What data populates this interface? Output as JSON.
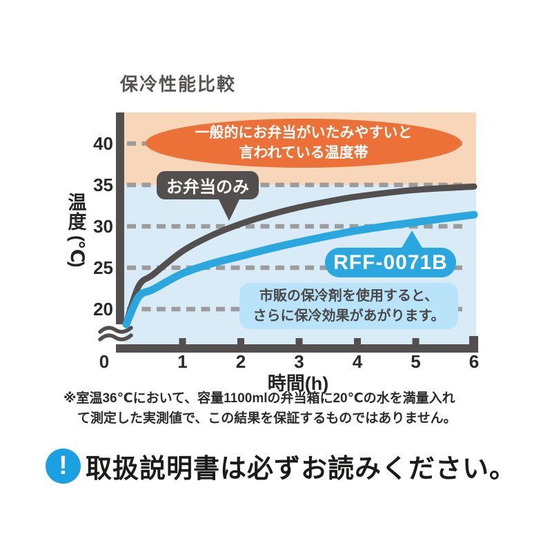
{
  "colors": {
    "dark": "#534f4f",
    "blue": "#2ba7e0",
    "zone_warm": "#f8d6ba",
    "zone_cool": "#d9ebf7",
    "ellipse_orange": "#eb7138",
    "note_box_blue": "#b9e3f8",
    "gridline_gray": "#9c9c9c",
    "icon_blue": "#1ba1e2",
    "tick_text": "#2b2828"
  },
  "chart_data": {
    "type": "line",
    "title": "保冷性能比較",
    "xlabel": "時間(h)",
    "ylabel": "温度(℃)",
    "ylabel_vertical": [
      "温",
      "度",
      "(℃)"
    ],
    "xticks": [
      0,
      1,
      2,
      3,
      4,
      5,
      6
    ],
    "yticks": [
      40,
      35,
      30,
      25,
      20
    ],
    "xlim": [
      0,
      6
    ],
    "ylim_visible": [
      20,
      43.5
    ],
    "axis_break_below": 20,
    "grid": "horizontal dashed",
    "series": [
      {
        "name": "お弁当のみ",
        "color": "#534f4f",
        "points": [
          [
            0,
            20
          ],
          [
            0.25,
            22.8
          ],
          [
            0.5,
            24.2
          ],
          [
            1,
            27
          ],
          [
            1.5,
            28.9
          ],
          [
            2,
            30.3
          ],
          [
            2.5,
            31.4
          ],
          [
            3,
            32.3
          ],
          [
            3.5,
            33
          ],
          [
            4,
            33.6
          ],
          [
            5,
            34.4
          ],
          [
            6,
            34.8
          ]
        ]
      },
      {
        "name": "RFF-0071B",
        "color": "#2ba7e0",
        "points": [
          [
            0,
            20
          ],
          [
            0.25,
            21.5
          ],
          [
            0.5,
            22.4
          ],
          [
            1,
            24.3
          ],
          [
            1.5,
            25.5
          ],
          [
            2,
            26.4
          ],
          [
            2.5,
            27.3
          ],
          [
            3,
            28.1
          ],
          [
            4,
            29.5
          ],
          [
            5,
            30.5
          ],
          [
            6,
            31.4
          ]
        ]
      }
    ],
    "danger_band": {
      "range_c": [
        35,
        43.5
      ],
      "label": "一般的にお弁当がいたみやすいと言われている温度帯"
    }
  },
  "annotations": {
    "danger_line1": "一般的にお弁当がいたみやすいと",
    "danger_line2": "言われている温度帯",
    "series1_badge": "お弁当のみ",
    "series2_badge": "RFF-0071B",
    "note_line1": "市販の保冷剤を使用すると、",
    "note_line2": "さらに保冷効果があがります。"
  },
  "footnote": {
    "line1": "※室温36℃において、容量1100mlの弁当箱に20℃の水を満量入れ",
    "line2": "て測定した実測値で、この結果を保証するものではありません。"
  },
  "warning": {
    "icon": "exclamation-circle-icon",
    "icon_glyph": "!",
    "text": "取扱説明書は必ずお読みください。"
  }
}
